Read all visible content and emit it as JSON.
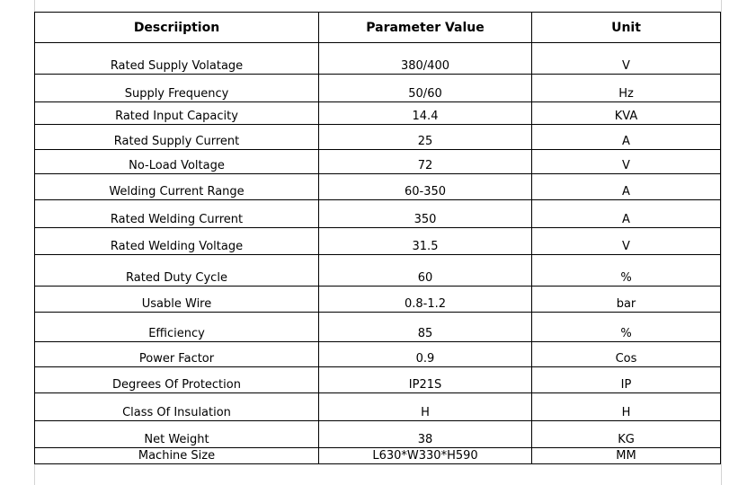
{
  "table": {
    "headers": [
      "Descriiption",
      "Parameter Value",
      "Unit"
    ],
    "rows": [
      {
        "description": "Rated Supply Volatage",
        "value": "380/400",
        "unit": "V"
      },
      {
        "description": "Supply Frequency",
        "value": "50/60",
        "unit": "Hz"
      },
      {
        "description": "Rated Input Capacity",
        "value": "14.4",
        "unit": "KVA"
      },
      {
        "description": "Rated Supply Current",
        "value": "25",
        "unit": "A"
      },
      {
        "description": "No-Load Voltage",
        "value": "72",
        "unit": "V"
      },
      {
        "description": "Welding Current Range",
        "value": "60-350",
        "unit": "A"
      },
      {
        "description": "Rated Welding Current",
        "value": "350",
        "unit": "A"
      },
      {
        "description": "Rated Welding Voltage",
        "value": "31.5",
        "unit": "V"
      },
      {
        "description": "Rated Duty Cycle",
        "value": "60",
        "unit": "%"
      },
      {
        "description": "Usable Wire",
        "value": "0.8-1.2",
        "unit": "bar"
      },
      {
        "description": "Efficiency",
        "value": "85",
        "unit": "%"
      },
      {
        "description": "Power Factor",
        "value": "0.9",
        "unit": "Cos"
      },
      {
        "description": "Degrees Of Protection",
        "value": "IP21S",
        "unit": "IP"
      },
      {
        "description": "Class Of Insulation",
        "value": "H",
        "unit": "H"
      },
      {
        "description": "Net Weight",
        "value": "38",
        "unit": "KG"
      },
      {
        "description": "Machine Size",
        "value": "L630*W330*H590",
        "unit": "MM"
      }
    ]
  }
}
